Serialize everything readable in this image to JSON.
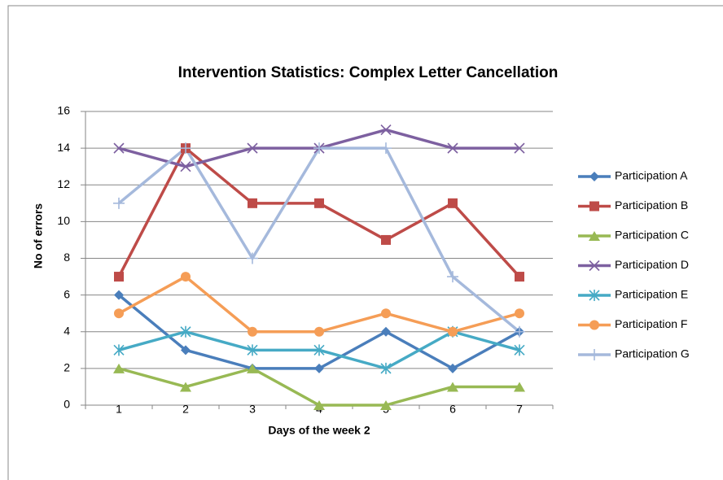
{
  "chart_data": {
    "type": "line",
    "title": "Intervention Statistics: Complex Letter Cancellation",
    "x_label": "Days of the week 2",
    "y_label": "No of errors",
    "categories": [
      "1",
      "2",
      "3",
      "4",
      "5",
      "6",
      "7"
    ],
    "series": [
      {
        "name": "Participation A",
        "color": "#4a7ebb",
        "marker": "diamond",
        "values": [
          6,
          3,
          2,
          2,
          4,
          2,
          4
        ]
      },
      {
        "name": "Participation B",
        "color": "#be4b48",
        "marker": "square",
        "values": [
          7,
          14,
          11,
          11,
          9,
          11,
          7
        ]
      },
      {
        "name": "Participation C",
        "color": "#98b954",
        "marker": "triangle",
        "values": [
          2,
          1,
          2,
          0,
          0,
          1,
          1
        ]
      },
      {
        "name": "Participation D",
        "color": "#7d60a0",
        "marker": "x",
        "values": [
          14,
          13,
          14,
          14,
          15,
          14,
          14
        ]
      },
      {
        "name": "Participation E",
        "color": "#46aac5",
        "marker": "star",
        "values": [
          3,
          4,
          3,
          3,
          2,
          4,
          3
        ]
      },
      {
        "name": "Participation F",
        "color": "#f59d56",
        "marker": "circle",
        "values": [
          5,
          7,
          4,
          4,
          5,
          4,
          5
        ]
      },
      {
        "name": "Participation G",
        "color": "#a5b9dc",
        "marker": "plus",
        "values": [
          11,
          14,
          8,
          14,
          14,
          7,
          4
        ]
      }
    ],
    "ylim": [
      0,
      16
    ],
    "yticks": [
      0,
      2,
      4,
      6,
      8,
      10,
      12,
      14,
      16
    ],
    "grid": true,
    "legend": "right"
  }
}
